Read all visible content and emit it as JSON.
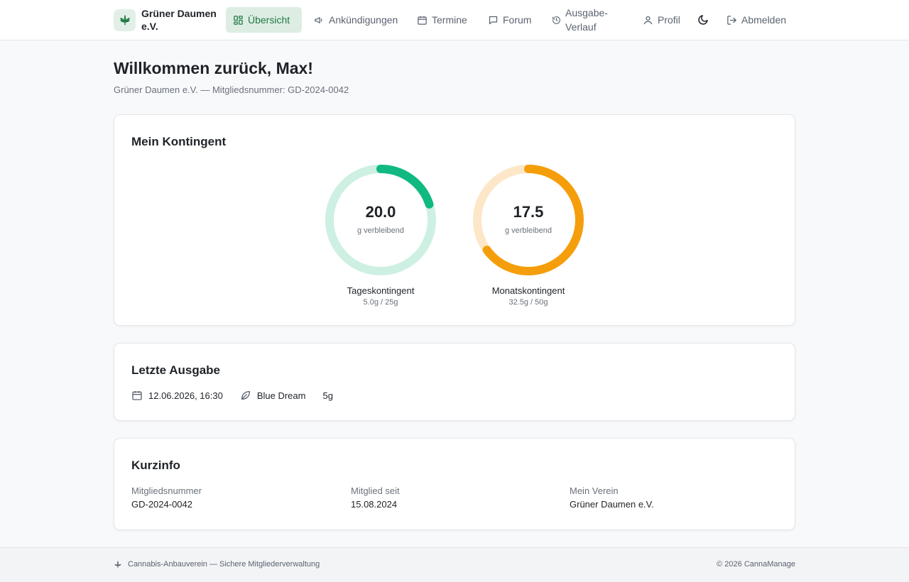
{
  "header": {
    "brand_name": "Grüner Daumen e.V.",
    "nav": [
      {
        "label": "Übersicht",
        "icon": "dashboard-icon",
        "active": true
      },
      {
        "label": "Ankündigungen",
        "icon": "megaphone-icon"
      },
      {
        "label": "Termine",
        "icon": "calendar-icon"
      },
      {
        "label": "Forum",
        "icon": "chat-icon"
      },
      {
        "label": "Ausgabe-Verlauf",
        "icon": "history-icon"
      },
      {
        "label": "Profil",
        "icon": "user-icon"
      },
      {
        "label": "Abmelden",
        "icon": "logout-icon"
      }
    ],
    "theme_toggle_icon": "moon-icon"
  },
  "page": {
    "title": "Willkommen zurück, Max!",
    "subtitle": "Grüner Daumen e.V. — Mitgliedsnummer: GD-2024-0042"
  },
  "kontingent": {
    "title": "Mein Kontingent",
    "daily": {
      "value": "20.0",
      "unit": "g verbleibend",
      "label": "Tageskontingent",
      "detail": "5.0g / 25g",
      "fraction": 0.2,
      "color": "#10b981",
      "track": "#cdf0e2"
    },
    "monthly": {
      "value": "17.5",
      "unit": "g verbleibend",
      "label": "Monatskontingent",
      "detail": "32.5g / 50g",
      "fraction": 0.65,
      "color": "#f59e0b",
      "track": "#fde7c8"
    }
  },
  "letzte_ausgabe": {
    "title": "Letzte Ausgabe",
    "date": "12.06.2026, 16:30",
    "strain": "Blue Dream",
    "amount": "5g"
  },
  "kurzinfo": {
    "title": "Kurzinfo",
    "items": [
      {
        "label": "Mitgliedsnummer",
        "value": "GD-2024-0042"
      },
      {
        "label": "Mitglied seit",
        "value": "15.08.2024"
      },
      {
        "label": "Mein Verein",
        "value": "Grüner Daumen e.V."
      }
    ]
  },
  "footer": {
    "left": "Cannabis-Anbauverein — Sichere Mitgliederverwaltung",
    "right": "© 2026 CannaManage"
  },
  "colors": {
    "accent": "#1e7a44",
    "accent_bg": "#deede3"
  }
}
